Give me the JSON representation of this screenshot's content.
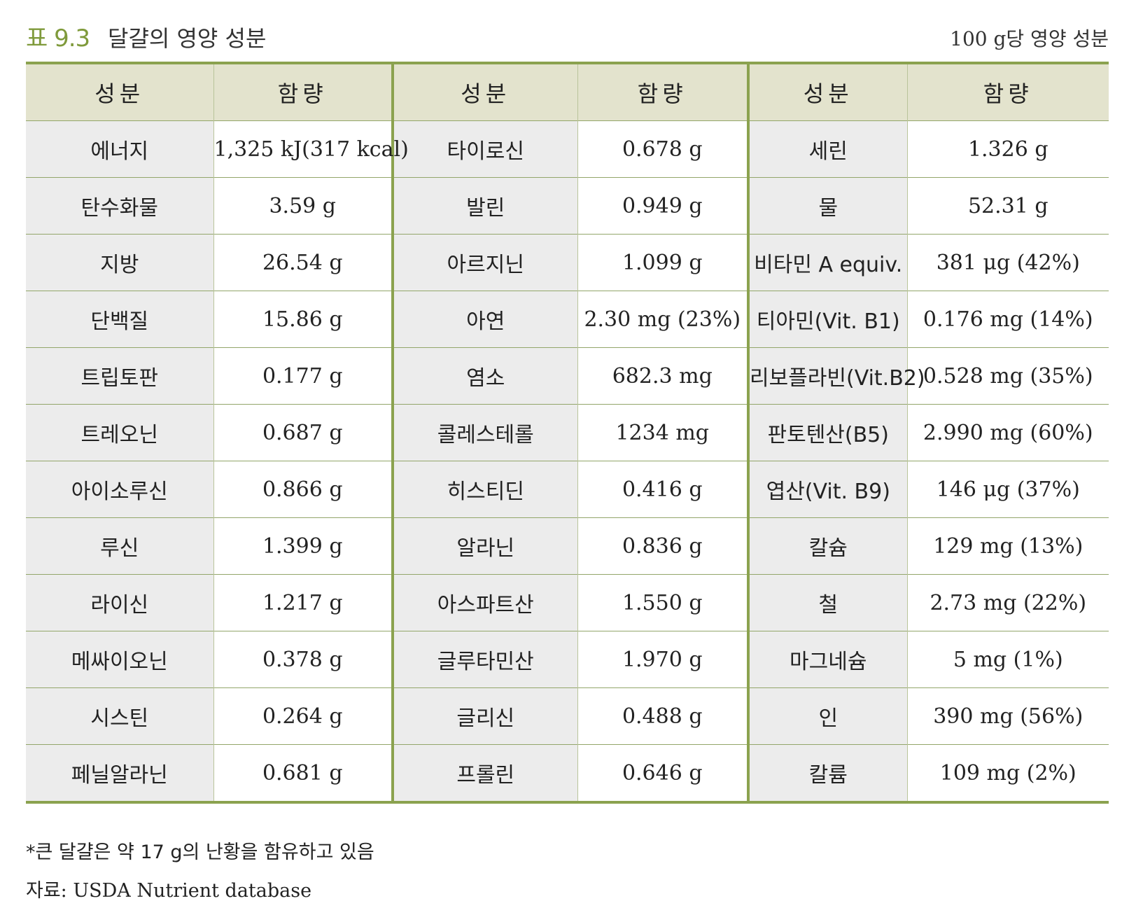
{
  "header": {
    "table_number": "표 9.3",
    "title": "달걀의 영양 성분",
    "unit_note": "100 g당 영양 성분"
  },
  "table": {
    "columns": [
      "성분",
      "함량",
      "성분",
      "함량",
      "성분",
      "함량"
    ],
    "rows": [
      [
        "에너지",
        "1,325 kJ(317 kcal)",
        "타이로신",
        "0.678 g",
        "세린",
        "1.326 g"
      ],
      [
        "탄수화물",
        "3.59 g",
        "발린",
        "0.949 g",
        "물",
        "52.31 g"
      ],
      [
        "지방",
        "26.54 g",
        "아르지닌",
        "1.099 g",
        "비타민 A equiv.",
        "381 μg (42%)"
      ],
      [
        "단백질",
        "15.86 g",
        "아연",
        "2.30 mg (23%)",
        "티아민(Vit. B1)",
        "0.176 mg (14%)"
      ],
      [
        "트립토판",
        "0.177 g",
        "염소",
        "682.3 mg",
        "리보플라빈(Vit.B2)",
        "0.528 mg (35%)"
      ],
      [
        "트레오닌",
        "0.687 g",
        "콜레스테롤",
        "1234 mg",
        "판토텐산(B5)",
        "2.990 mg (60%)"
      ],
      [
        "아이소루신",
        "0.866 g",
        "히스티딘",
        "0.416 g",
        "엽산(Vit. B9)",
        "146 μg (37%)"
      ],
      [
        "루신",
        "1.399 g",
        "알라닌",
        "0.836 g",
        "칼슘",
        "129 mg (13%)"
      ],
      [
        "라이신",
        "1.217 g",
        "아스파트산",
        "1.550 g",
        "철",
        "2.73 mg (22%)"
      ],
      [
        "메싸이오닌",
        "0.378 g",
        "글루타민산",
        "1.970 g",
        "마그네슘",
        "5 mg (1%)"
      ],
      [
        "시스틴",
        "0.264 g",
        "글리신",
        "0.488 g",
        "인",
        "390 mg (56%)"
      ],
      [
        "페닐알라닌",
        "0.681 g",
        "프롤린",
        "0.646 g",
        "칼륨",
        "109 mg (2%)"
      ]
    ]
  },
  "footnotes": {
    "note": "*큰 달걀은 약 17 g의 난황을 함유하고 있음",
    "source": "자료: USDA Nutrient database"
  },
  "colors": {
    "accent": "#8ba24f",
    "header_bg": "#e3e3cd",
    "name_cell_bg": "#ececec"
  }
}
